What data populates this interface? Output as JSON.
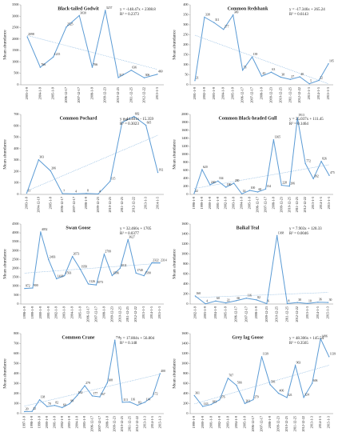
{
  "chart_data": [
    {
      "type": "line",
      "title": "Black-tailed Godwit",
      "equation": "y = -148.47x + 2308.8",
      "r2": "R² = 0.2373",
      "y_label": "Mean abundance",
      "color": "#5b9bd5",
      "trend": {
        "slope": -148.47,
        "intercept": 2308.8
      },
      "categories": [
        "2003-1-9",
        "2004-1-9",
        "2005-1-9",
        "2006-12-17",
        "2007-12-17",
        "2008-1-9",
        "2009-12-23",
        "2010-12-25",
        "2011-12-25",
        "2012-12-22",
        "2013-1-3"
      ],
      "values": [
        2098,
        766,
        1215,
        2525,
        3030,
        766,
        3257,
        317,
        636,
        306,
        460
      ],
      "ylim": [
        0,
        3500
      ],
      "yticks": [
        0,
        500,
        1000,
        1500,
        2000,
        2500,
        3000,
        3500
      ]
    },
    {
      "type": "line",
      "title": "Common Redshank",
      "equation": "y = -17.346x + 265.24",
      "r2": "R² = 0.6143",
      "y_label": "Mean abundance",
      "color": "#5b9bd5",
      "trend": {
        "slope": -17.346,
        "intercept": 265.24
      },
      "categories": [
        "2001-1-9",
        "2002-1-9",
        "2003-1-9",
        "2004-1-9",
        "2005-1-9",
        "2006-12-17",
        "2007-12-17",
        "2008-1-9",
        "2009-12-23",
        "2010-12-25",
        "2011-12-25",
        "2012-12-22",
        "2013-1-3",
        "2014-1-5",
        "2015-1-3"
      ],
      "values": [
        21,
        338,
        311,
        277,
        349,
        73,
        139,
        43,
        63,
        38,
        27,
        40,
        5,
        22,
        105
      ],
      "ylim": [
        0,
        400
      ],
      "yticks": [
        0,
        50,
        100,
        150,
        200,
        250,
        300,
        350,
        400
      ]
    },
    {
      "type": "line",
      "title": "Common Pochard",
      "equation": "y = 44.401x - 15.359",
      "r2": "R² = 0.3023",
      "y_label": "Mean abundance",
      "color": "#5b9bd5",
      "trend": {
        "slope": 44.401,
        "intercept": -15.359
      },
      "categories": [
        "2003-1-9",
        "2004-12-19",
        "2005-1-9",
        "2006-12-17",
        "2007-12-17",
        "2008-1-9",
        "2009-12-23",
        "2010-12-25",
        "2011-12-25",
        "2012-12-22",
        "2013-1-3",
        "2014-1-5"
      ],
      "values": [
        11,
        303,
        206,
        7,
        4,
        8,
        4,
        115,
        630,
        682,
        605,
        192
      ],
      "ylim": [
        0,
        700
      ],
      "yticks": [
        0,
        100,
        200,
        300,
        400,
        500,
        600,
        700
      ]
    },
    {
      "type": "line",
      "title": "Common Black-headed Gull",
      "equation": "y = 35.037x + 111.45",
      "r2": "R² = 0.1464",
      "y_label": "Mean abundance",
      "color": "#5b9bd5",
      "trend": {
        "slope": 35.037,
        "intercept": 111.45
      },
      "categories": [
        "1998-1-9",
        "1999-1-9",
        "2000-1-9",
        "2001-1-9",
        "2002-1-9",
        "2003-1-9",
        "2004-1-9",
        "2005-1-9",
        "2006-12-17",
        "2007-12-17",
        "2008-1-9",
        "2009-12-23",
        "2010-12-25",
        "2011-12-25",
        "2012-12-22",
        "2013-1-3",
        "2014-1-5",
        "2015-1-3"
      ],
      "values": [
        22,
        620,
        240,
        334,
        180,
        280,
        14,
        100,
        60,
        134,
        1365,
        228,
        206,
        1913,
        772,
        392,
        826,
        475
      ],
      "ylim": [
        0,
        2000
      ],
      "yticks": [
        0,
        200,
        400,
        600,
        800,
        1000,
        1200,
        1400,
        1600,
        1800,
        2000
      ]
    },
    {
      "type": "line",
      "title": "Swan Goose",
      "equation": "y = 32.466x + 1705",
      "r2": "R² = 0.0377",
      "y_label": "Mean abundance",
      "color": "#5b9bd5",
      "trend": {
        "slope": 32.466,
        "intercept": 1705
      },
      "categories": [
        "1998-1-9",
        "1999-1-9",
        "2000-1-9",
        "2001-1-9",
        "2002-1-9",
        "2003-1-9",
        "2004-1-9",
        "2005-1-9",
        "2006-12-17",
        "2007-12-17",
        "2008-1-9",
        "2009-12-23",
        "2010-12-25",
        "2011-12-25",
        "2012-12-22",
        "2013-1-3",
        "2014-1-5",
        "2015-1-3"
      ],
      "values": [
        872,
        900,
        4052,
        2493,
        1418,
        1593,
        2673,
        1950,
        1126,
        1073,
        2799,
        1596,
        2011,
        3627,
        1740,
        1590,
        2322,
        2314
      ],
      "ylim": [
        0,
        4500
      ],
      "yticks": [
        0,
        500,
        1000,
        1500,
        2000,
        2500,
        3000,
        3500,
        4000,
        4500
      ]
    },
    {
      "type": "line",
      "title": "Baikal Teal",
      "equation": "y = 7.903x + 120.33",
      "r2": "R² = 0.0046",
      "y_label": "Mean abundance",
      "color": "#5b9bd5",
      "trend": {
        "slope": 7.903,
        "intercept": 120.33
      },
      "categories": [
        "2002-1-9",
        "2003-1-9",
        "2004-1-9",
        "2005-1-9",
        "2006-12-17",
        "2007-12-17",
        "2008-1-9",
        "2009-12-23",
        "2010-12-25",
        "2011-12-25",
        "2012-12-22",
        "2013-1-3",
        "2014-1-5",
        "2015-1-3"
      ],
      "values": [
        160,
        4,
        60,
        22,
        66,
        116,
        82,
        6,
        1368,
        8,
        30,
        10,
        36,
        30
      ],
      "ylim": [
        0,
        1600
      ],
      "yticks": [
        0,
        200,
        400,
        600,
        800,
        1000,
        1200,
        1400,
        1600
      ]
    },
    {
      "type": "line",
      "title": "Common Crane",
      "equation": "y = 17.804x + 56.804",
      "r2": "R² = 0.148",
      "y_label": "Mean abundance",
      "color": "#5b9bd5",
      "trend": {
        "slope": 17.804,
        "intercept": 56.804
      },
      "categories": [
        "1997-1-9",
        "1998-1-9",
        "1999-1-9",
        "2000-1-9",
        "2001-1-9",
        "2002-1-9",
        "2003-1-9",
        "2004-1-9",
        "2005-1-9",
        "2006-12-17",
        "2007-12-17",
        "2008-1-9",
        "2009-12-23",
        "2010-12-25",
        "2011-12-25",
        "2012-12-22",
        "2013-1-3",
        "2014-1-5",
        "2015-1-3"
      ],
      "values": [
        20,
        22,
        138,
        70,
        82,
        60,
        99,
        182,
        279,
        177,
        167,
        308,
        734,
        113,
        116,
        83,
        114,
        172,
        400
      ],
      "ylim": [
        0,
        800
      ],
      "yticks": [
        0,
        100,
        200,
        300,
        400,
        500,
        600,
        700,
        800
      ]
    },
    {
      "type": "line",
      "title": "Grey lag Goose",
      "equation": "y = 48.306x + 145.54",
      "r2": "R² = 0.3565",
      "y_label": "Mean abundance",
      "color": "#5b9bd5",
      "trend": {
        "slope": 48.306,
        "intercept": 145.54
      },
      "categories": [
        "1999-1-9",
        "2000-1-9",
        "2001-1-9",
        "2002-1-9",
        "2003-1-9",
        "2004-1-9",
        "2005-1-9",
        "2006-12-17",
        "2007-12-17",
        "2008-1-9",
        "2009-12-23",
        "2010-12-25",
        "2011-12-25",
        "2012-12-22",
        "2013-1-3",
        "2014-1-5",
        "2015-1-3"
      ],
      "values": [
        361,
        143,
        183,
        276,
        707,
        566,
        201,
        279,
        1139,
        581,
        406,
        321,
        963,
        324,
        606,
        1496,
        1139
      ],
      "ylim": [
        0,
        1600
      ],
      "yticks": [
        0,
        200,
        400,
        600,
        800,
        1000,
        1200,
        1400,
        1600
      ]
    }
  ]
}
